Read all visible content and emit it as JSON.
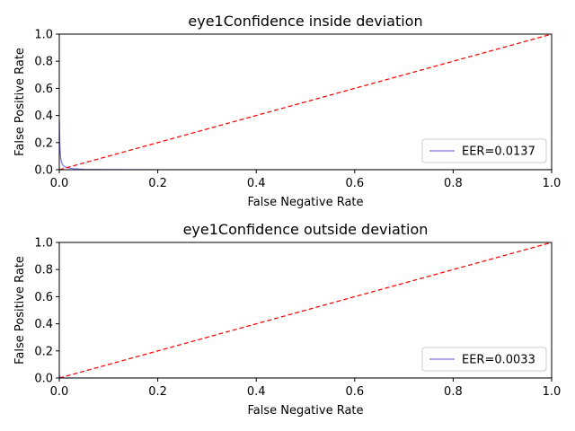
{
  "chart_data": [
    {
      "type": "line",
      "title": "eye1Confidence inside deviation",
      "xlabel": "False Negative Rate",
      "ylabel": "False Positive Rate",
      "xlim": [
        0,
        1
      ],
      "ylim": [
        0,
        1
      ],
      "xticks": [
        "0.0",
        "0.2",
        "0.4",
        "0.6",
        "0.8",
        "1.0"
      ],
      "yticks": [
        "0.0",
        "0.2",
        "0.4",
        "0.6",
        "0.8",
        "1.0"
      ],
      "legend_position": "lower-right",
      "series": [
        {
          "name": "EER=0.0137",
          "color": "#7777ee",
          "x": [
            0,
            0.001,
            0.002,
            0.003,
            0.005,
            0.008,
            0.012,
            0.02,
            0.03,
            0.05,
            0.1,
            0.2,
            0.4,
            0.6,
            0.8,
            1.0
          ],
          "y": [
            0.37,
            0.2,
            0.12,
            0.08,
            0.05,
            0.03,
            0.02,
            0.012,
            0.007,
            0.003,
            0.001,
            0.0005,
            0.0,
            0.0,
            0.0,
            0.0
          ]
        },
        {
          "color": "#ff0000",
          "style": "dashed",
          "x": [
            0,
            1
          ],
          "y": [
            0,
            1
          ]
        }
      ]
    },
    {
      "type": "line",
      "title": "eye1Confidence outside deviation",
      "xlabel": "False Negative Rate",
      "ylabel": "False Positive Rate",
      "xlim": [
        0,
        1
      ],
      "ylim": [
        0,
        1
      ],
      "xticks": [
        "0.0",
        "0.2",
        "0.4",
        "0.6",
        "0.8",
        "1.0"
      ],
      "yticks": [
        "0.0",
        "0.2",
        "0.4",
        "0.6",
        "0.8",
        "1.0"
      ],
      "legend_position": "lower-right",
      "series": [
        {
          "name": "EER=0.0033",
          "color": "#7777ee",
          "x": [
            0,
            0.002,
            0.005,
            0.01,
            0.05,
            0.2,
            0.5,
            1.0
          ],
          "y": [
            0.02,
            0.004,
            0.001,
            0.0,
            0.0,
            0.0,
            0.0,
            0.0
          ]
        },
        {
          "color": "#ff0000",
          "style": "dashed",
          "x": [
            0,
            1
          ],
          "y": [
            0,
            1
          ]
        }
      ]
    }
  ]
}
